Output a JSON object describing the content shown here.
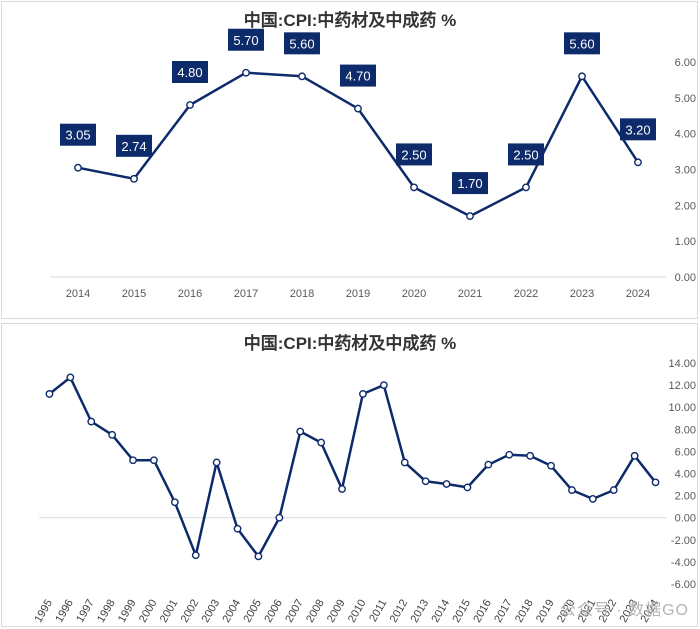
{
  "chart_data": [
    {
      "type": "line",
      "title": "中国:CPI:中药材及中成药 %",
      "categories": [
        "2014",
        "2015",
        "2016",
        "2017",
        "2018",
        "2019",
        "2020",
        "2021",
        "2022",
        "2023",
        "2024"
      ],
      "series": [
        {
          "values": [
            3.05,
            2.74,
            4.8,
            5.7,
            5.6,
            4.7,
            2.5,
            1.7,
            2.5,
            5.6,
            3.2
          ]
        }
      ],
      "data_labels": [
        "3.05",
        "2.74",
        "4.80",
        "5.70",
        "5.60",
        "4.70",
        "2.50",
        "1.70",
        "2.50",
        "5.60",
        "3.20"
      ],
      "ylim": [
        0,
        6
      ],
      "yticks": [
        "0.00",
        "1.00",
        "2.00",
        "3.00",
        "4.00",
        "5.00",
        "6.00"
      ],
      "y_axis_side": "right",
      "grid": false,
      "line_color": "#0d2a6b",
      "label_box_color": "#0d2a6b"
    },
    {
      "type": "line",
      "title": "中国:CPI:中药材及中成药 %",
      "categories": [
        "1995",
        "1996",
        "1997",
        "1998",
        "1999",
        "2000",
        "2001",
        "2002",
        "2003",
        "2004",
        "2005",
        "2006",
        "2007",
        "2008",
        "2009",
        "2010",
        "2011",
        "2012",
        "2013",
        "2014",
        "2015",
        "2016",
        "2017",
        "2018",
        "2019",
        "2020",
        "2021",
        "2022",
        "2023",
        "2024"
      ],
      "series": [
        {
          "values": [
            11.2,
            12.7,
            8.7,
            7.5,
            5.2,
            5.2,
            1.4,
            -3.4,
            5.0,
            -1.0,
            -3.5,
            0.0,
            7.8,
            6.8,
            2.6,
            11.2,
            12.0,
            5.0,
            3.3,
            3.05,
            2.74,
            4.8,
            5.7,
            5.6,
            4.7,
            2.5,
            1.7,
            2.5,
            5.6,
            3.2
          ]
        }
      ],
      "ylim": [
        -6,
        14
      ],
      "yticks": [
        "-6.00",
        "-4.00",
        "-2.00",
        "0.00",
        "2.00",
        "4.00",
        "6.00",
        "8.00",
        "10.00",
        "12.00",
        "14.00"
      ],
      "y_axis_side": "right",
      "grid": false,
      "line_color": "#0d2a6b"
    }
  ],
  "watermark": "公众号 · 数据GO"
}
